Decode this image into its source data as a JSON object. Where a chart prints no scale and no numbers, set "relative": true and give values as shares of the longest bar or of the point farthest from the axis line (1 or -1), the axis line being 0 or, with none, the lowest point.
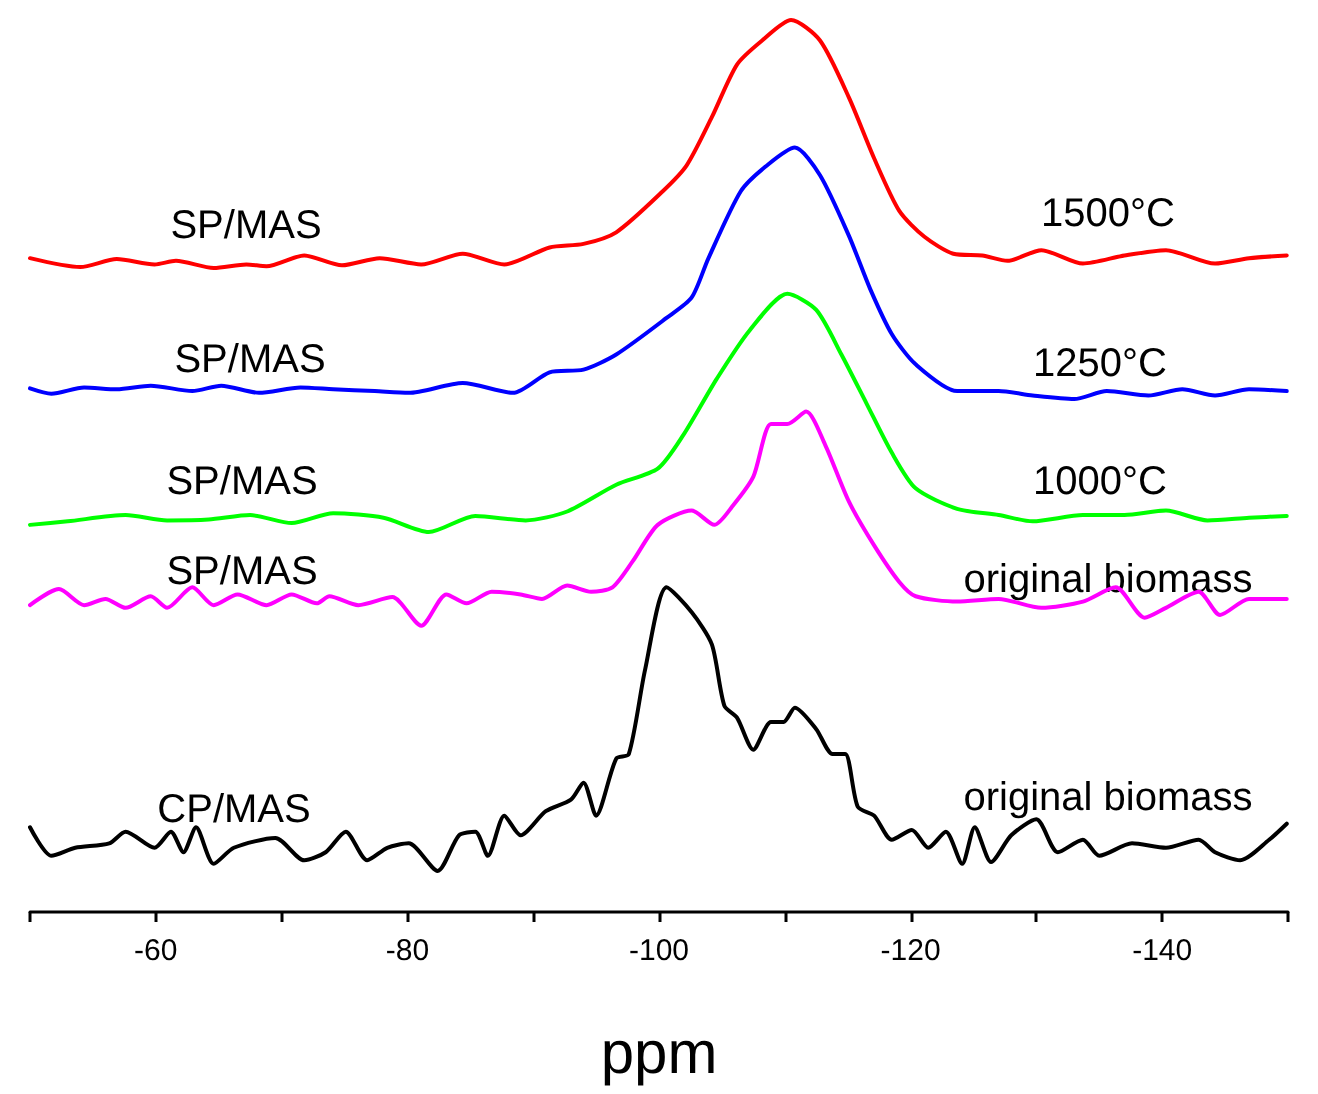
{
  "chart_data": {
    "type": "line",
    "xlabel": "ppm",
    "relative": true,
    "grid": false,
    "marker": "none",
    "line_style": "solid",
    "xlim": [
      -50,
      -150
    ],
    "xticks": [
      {
        "value": -50,
        "label": null
      },
      -60,
      {
        "value": -70,
        "label": null
      },
      -80,
      {
        "value": -90,
        "label": null
      },
      -100,
      {
        "value": -110,
        "label": null
      },
      -120,
      {
        "value": -130,
        "label": null
      },
      -140,
      {
        "value": -150,
        "label": null
      }
    ],
    "series": [
      {
        "color": "#ff0000",
        "x": [
          -50,
          -54.0,
          -56.9,
          -59.9,
          -61.6,
          -64.6,
          -67.2,
          -68.8,
          -71.8,
          -74.8,
          -77.8,
          -81.1,
          -84.4,
          -87.7,
          -91.3,
          -94.0,
          -96.6,
          -100.3,
          -102.2,
          -104.2,
          -106.2,
          -108.2,
          -110.5,
          -112.8,
          -115.1,
          -117.1,
          -119.1,
          -121.1,
          -123.4,
          -125.7,
          -127.7,
          -130.4,
          -133.7,
          -137.0,
          -140.3,
          -144.2,
          -146.9,
          -149.9
        ],
        "values": [
          0.733,
          0.723,
          0.732,
          0.726,
          0.73,
          0.722,
          0.726,
          0.724,
          0.736,
          0.725,
          0.733,
          0.726,
          0.738,
          0.726,
          0.745,
          0.749,
          0.762,
          0.808,
          0.837,
          0.891,
          0.95,
          0.977,
          1,
          0.977,
          0.913,
          0.845,
          0.786,
          0.757,
          0.738,
          0.736,
          0.73,
          0.742,
          0.727,
          0.736,
          0.742,
          0.727,
          0.733,
          0.736
        ]
      },
      {
        "color": "#0000ff",
        "x": [
          -50,
          -51.7,
          -54.3,
          -56.9,
          -59.6,
          -62.9,
          -65.2,
          -68.2,
          -71.5,
          -74.1,
          -77.4,
          -80.1,
          -84.4,
          -88.4,
          -91.3,
          -94.0,
          -96.6,
          -100.6,
          -102.6,
          -103.9,
          -106.5,
          -108.5,
          -110.8,
          -112.8,
          -115.1,
          -116.8,
          -118.5,
          -120.4,
          -123.7,
          -127.0,
          -129.7,
          -133.0,
          -135.6,
          -138.9,
          -141.6,
          -144.2,
          -146.9,
          -149.9
        ],
        "values": [
          0.587,
          0.581,
          0.588,
          0.586,
          0.59,
          0.584,
          0.59,
          0.582,
          0.588,
          0.586,
          0.584,
          0.582,
          0.593,
          0.582,
          0.605,
          0.608,
          0.625,
          0.666,
          0.689,
          0.732,
          0.808,
          0.836,
          0.857,
          0.826,
          0.758,
          0.698,
          0.648,
          0.614,
          0.584,
          0.584,
          0.579,
          0.575,
          0.584,
          0.579,
          0.586,
          0.579,
          0.586,
          0.584
        ]
      },
      {
        "color": "#00ff00",
        "x": [
          -50,
          -53.0,
          -57.6,
          -60.9,
          -64.2,
          -67.5,
          -70.8,
          -74.1,
          -78.1,
          -81.7,
          -85.4,
          -89.4,
          -92.7,
          -96.6,
          -99.9,
          -101.9,
          -104.6,
          -107.2,
          -110.2,
          -112.5,
          -114.5,
          -116.5,
          -118.5,
          -120.4,
          -123.7,
          -127.0,
          -129.7,
          -133.7,
          -137.0,
          -140.3,
          -143.6,
          -146.9,
          -149.9
        ],
        "values": [
          0.434,
          0.438,
          0.445,
          0.439,
          0.44,
          0.445,
          0.436,
          0.447,
          0.442,
          0.426,
          0.444,
          0.439,
          0.449,
          0.479,
          0.497,
          0.534,
          0.598,
          0.652,
          0.693,
          0.675,
          0.625,
          0.57,
          0.515,
          0.475,
          0.452,
          0.445,
          0.438,
          0.445,
          0.445,
          0.45,
          0.439,
          0.442,
          0.444
        ]
      },
      {
        "color": "#ff00ff",
        "x": [
          -50,
          -52.3,
          -54.3,
          -56.0,
          -57.6,
          -59.6,
          -60.9,
          -62.9,
          -64.6,
          -66.5,
          -68.8,
          -70.8,
          -72.8,
          -73.8,
          -76.1,
          -78.8,
          -81.1,
          -83.1,
          -84.7,
          -86.7,
          -89.0,
          -90.7,
          -92.7,
          -94.6,
          -96.3,
          -97.9,
          -99.9,
          -102.6,
          -104.4,
          -105.9,
          -107.5,
          -108.9,
          -110.2,
          -111.7,
          -113.2,
          -115.1,
          -117.1,
          -119.1,
          -120.4,
          -123.7,
          -127.0,
          -130.4,
          -133.7,
          -136.3,
          -138.6,
          -140.3,
          -142.9,
          -144.6,
          -146.9,
          -149.9
        ],
        "values": [
          0.344,
          0.362,
          0.344,
          0.351,
          0.341,
          0.354,
          0.341,
          0.364,
          0.344,
          0.356,
          0.344,
          0.356,
          0.346,
          0.354,
          0.344,
          0.353,
          0.321,
          0.356,
          0.346,
          0.359,
          0.356,
          0.351,
          0.366,
          0.359,
          0.364,
          0.393,
          0.434,
          0.45,
          0.434,
          0.456,
          0.488,
          0.547,
          0.547,
          0.561,
          0.524,
          0.46,
          0.411,
          0.37,
          0.354,
          0.348,
          0.351,
          0.341,
          0.348,
          0.364,
          0.33,
          0.341,
          0.359,
          0.333,
          0.351,
          0.351
        ]
      },
      {
        "color": "#000000",
        "x": [
          -50,
          -51.7,
          -53.6,
          -56.3,
          -57.6,
          -59.9,
          -61.2,
          -62.2,
          -63.2,
          -64.6,
          -66.2,
          -69.5,
          -71.8,
          -73.5,
          -75.1,
          -76.8,
          -78.4,
          -80.1,
          -82.4,
          -84.1,
          -85.4,
          -86.4,
          -87.7,
          -89.0,
          -91.0,
          -93.0,
          -94.0,
          -95.0,
          -96.6,
          -97.6,
          -98.9,
          -100.6,
          -102.6,
          -104.2,
          -105.2,
          -106.2,
          -107.5,
          -108.9,
          -109.9,
          -110.8,
          -112.5,
          -113.8,
          -114.8,
          -115.8,
          -117.1,
          -118.5,
          -120.1,
          -121.4,
          -122.8,
          -124.1,
          -125.1,
          -126.4,
          -128.0,
          -130.0,
          -131.7,
          -133.7,
          -135.0,
          -137.6,
          -140.3,
          -142.9,
          -144.2,
          -146.2,
          -148.5,
          -149.9
        ],
        "values": [
          0.095,
          0.063,
          0.072,
          0.077,
          0.09,
          0.072,
          0.09,
          0.067,
          0.095,
          0.054,
          0.072,
          0.083,
          0.058,
          0.067,
          0.09,
          0.058,
          0.072,
          0.077,
          0.046,
          0.086,
          0.09,
          0.063,
          0.108,
          0.086,
          0.113,
          0.126,
          0.145,
          0.108,
          0.172,
          0.177,
          0.272,
          0.364,
          0.336,
          0.3,
          0.231,
          0.218,
          0.182,
          0.213,
          0.213,
          0.229,
          0.205,
          0.177,
          0.177,
          0.118,
          0.108,
          0.081,
          0.092,
          0.072,
          0.09,
          0.054,
          0.095,
          0.056,
          0.086,
          0.104,
          0.067,
          0.081,
          0.063,
          0.077,
          0.072,
          0.081,
          0.067,
          0.058,
          0.081,
          0.099
        ]
      }
    ],
    "annotations": [
      "SP/MAS",
      "1500°C",
      "SP/MAS",
      "1250°C",
      "SP/MAS",
      "1000°C",
      "SP/MAS",
      "original biomass",
      "CP/MAS",
      "original biomass"
    ]
  }
}
